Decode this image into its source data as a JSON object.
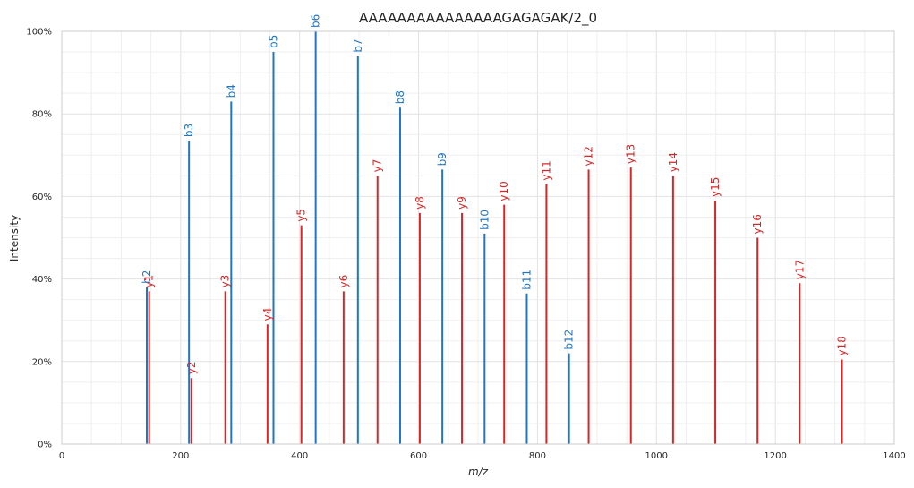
{
  "chart_data": {
    "type": "bar",
    "title": "AAAAAAAAAAAAAAAGAGAGAK/2_0",
    "xlabel": "m/z",
    "ylabel": "Intensity",
    "xlim": [
      0,
      1400
    ],
    "ylim": [
      0,
      100
    ],
    "x_ticks": [
      0,
      200,
      400,
      600,
      800,
      1000,
      1200,
      1400
    ],
    "y_ticks": [
      "0%",
      "20%",
      "40%",
      "60%",
      "80%",
      "100%"
    ],
    "y_tick_values": [
      0,
      20,
      40,
      60,
      80,
      100
    ],
    "grid": true,
    "colors": {
      "b": "#1f77c4",
      "y": "#d62728"
    },
    "series": [
      {
        "name": "b",
        "color": "#1f77c4",
        "points": [
          {
            "label": "b2",
            "mz": 143,
            "intensity": 38
          },
          {
            "label": "b3",
            "mz": 214,
            "intensity": 73.5
          },
          {
            "label": "b4",
            "mz": 285,
            "intensity": 83
          },
          {
            "label": "b5",
            "mz": 356,
            "intensity": 95
          },
          {
            "label": "b6",
            "mz": 427,
            "intensity": 100
          },
          {
            "label": "b7",
            "mz": 498,
            "intensity": 94
          },
          {
            "label": "b8",
            "mz": 569,
            "intensity": 81.5
          },
          {
            "label": "b9",
            "mz": 640,
            "intensity": 66.5
          },
          {
            "label": "b10",
            "mz": 711,
            "intensity": 51
          },
          {
            "label": "b11",
            "mz": 782,
            "intensity": 36.5
          },
          {
            "label": "b12",
            "mz": 853,
            "intensity": 22
          }
        ]
      },
      {
        "name": "y",
        "color": "#d62728",
        "points": [
          {
            "label": "y1",
            "mz": 147,
            "intensity": 37
          },
          {
            "label": "y2",
            "mz": 218,
            "intensity": 16
          },
          {
            "label": "y3",
            "mz": 275,
            "intensity": 37
          },
          {
            "label": "y4",
            "mz": 346,
            "intensity": 29
          },
          {
            "label": "y5",
            "mz": 403,
            "intensity": 53
          },
          {
            "label": "y6",
            "mz": 474,
            "intensity": 37
          },
          {
            "label": "y7",
            "mz": 531,
            "intensity": 65
          },
          {
            "label": "y8",
            "mz": 602,
            "intensity": 56
          },
          {
            "label": "y9",
            "mz": 673,
            "intensity": 56
          },
          {
            "label": "y10",
            "mz": 744,
            "intensity": 58
          },
          {
            "label": "y11",
            "mz": 815,
            "intensity": 63
          },
          {
            "label": "y12",
            "mz": 886,
            "intensity": 66.5
          },
          {
            "label": "y13",
            "mz": 957,
            "intensity": 67
          },
          {
            "label": "y14",
            "mz": 1028,
            "intensity": 65
          },
          {
            "label": "y15",
            "mz": 1099,
            "intensity": 59
          },
          {
            "label": "y16",
            "mz": 1170,
            "intensity": 50
          },
          {
            "label": "y17",
            "mz": 1241,
            "intensity": 39
          },
          {
            "label": "y18",
            "mz": 1312,
            "intensity": 20.5
          }
        ]
      }
    ]
  }
}
